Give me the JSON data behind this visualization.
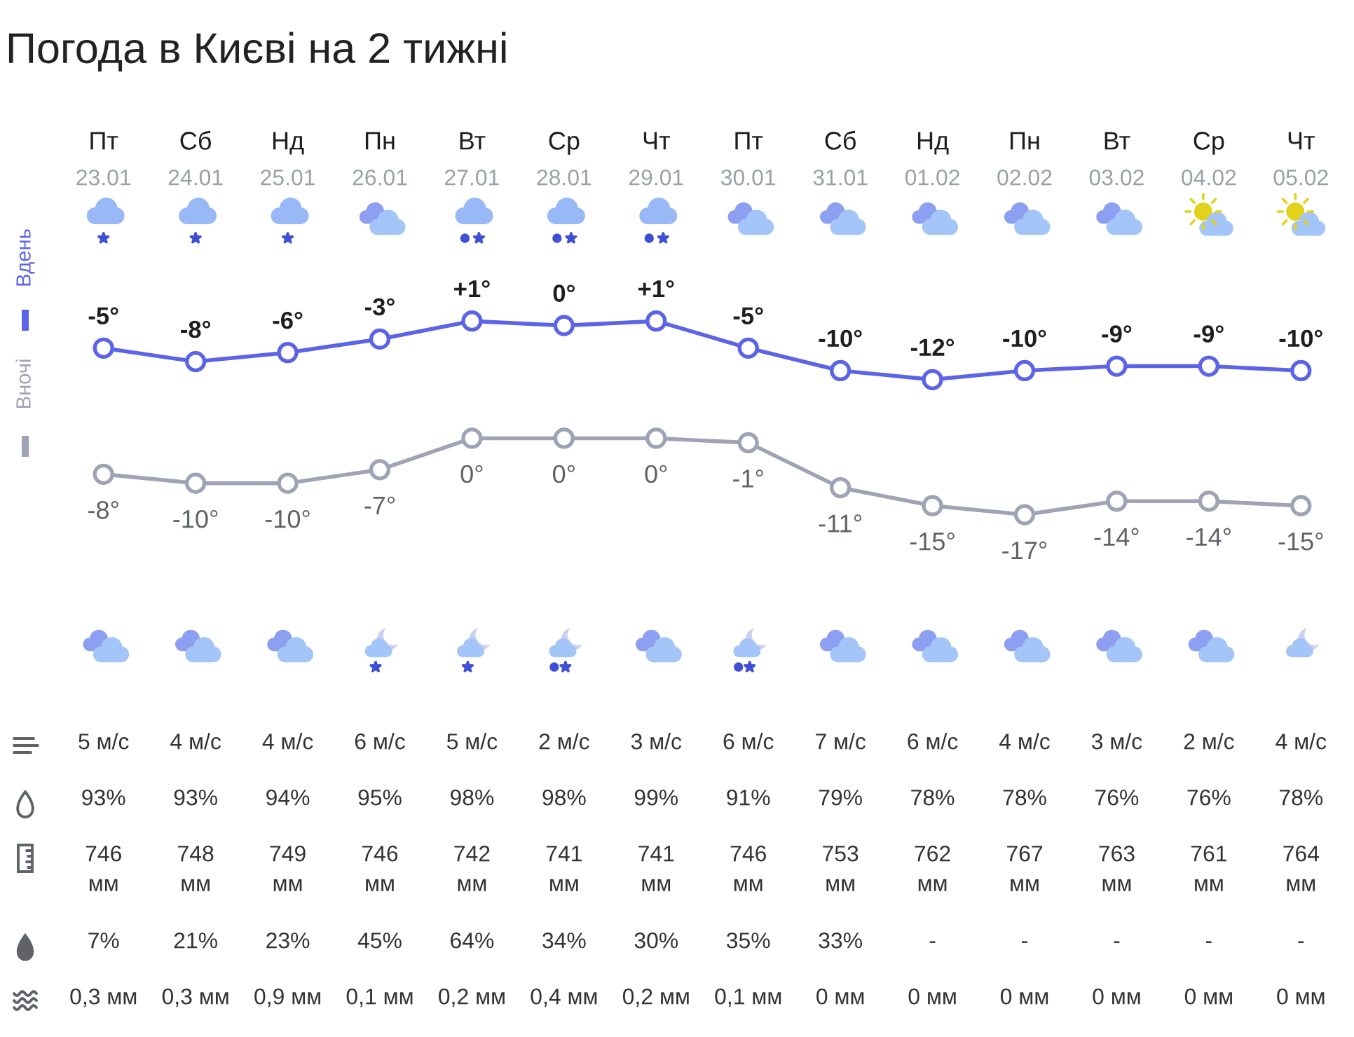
{
  "chart_data": [
    {
      "type": "line",
      "title": "Погода в Києві на 2 тижні",
      "categories": [
        "Пт\n23.01",
        "Сб\n24.01",
        "Нд\n25.01",
        "Пн\n26.01",
        "Вт\n27.01",
        "Ср\n28.01",
        "Чт\n29.01",
        "Пт\n30.01",
        "Сб\n31.01",
        "Нд\n01.02",
        "Пн\n02.02",
        "Вт\n03.02",
        "Ср\n04.02",
        "Чт\n05.02"
      ],
      "series": [
        {
          "name": "Вдень",
          "color": "#5b63e6",
          "values": [
            -5,
            -8,
            -6,
            -3,
            1,
            0,
            1,
            -5,
            -10,
            -12,
            -10,
            -9,
            -9,
            -10
          ],
          "value_labels": [
            "-5°",
            "-8°",
            "-6°",
            "-3°",
            "+1°",
            "0°",
            "+1°",
            "-5°",
            "-10°",
            "-12°",
            "-10°",
            "-9°",
            "-9°",
            "-10°"
          ]
        }
      ],
      "marker": "circle",
      "line_style": "solid",
      "legend": "left",
      "tick_labels": "x"
    },
    {
      "type": "line",
      "categories": [
        null,
        null,
        null,
        null,
        null,
        null,
        null,
        null,
        null,
        null,
        null,
        null,
        null,
        null
      ],
      "series": [
        {
          "name": "Вночі",
          "color": "#9ea3b5",
          "values": [
            -8,
            -10,
            -10,
            -7,
            0,
            0,
            0,
            -1,
            -11,
            -15,
            -17,
            -14,
            -14,
            -15
          ],
          "value_labels": [
            "-8°",
            "-10°",
            "-10°",
            "-7°",
            "0°",
            "0°",
            "0°",
            "-1°",
            "-11°",
            "-15°",
            "-17°",
            "-14°",
            "-14°",
            "-15°"
          ]
        }
      ],
      "marker": "circle",
      "line_style": "solid",
      "legend": "left",
      "tick_labels": false,
      "annotations": [
        "5 м/с",
        "4 м/с",
        "4 м/с",
        "6 м/с",
        "5 м/с",
        "2 м/с",
        "3 м/с",
        "6 м/с",
        "7 м/с",
        "6 м/с",
        "4 м/с",
        "3 м/с",
        "2 м/с",
        "4 м/с",
        "93%",
        "93%",
        "94%",
        "95%",
        "98%",
        "98%",
        "99%",
        "91%",
        "79%",
        "78%",
        "78%",
        "76%",
        "76%",
        "78%",
        "746\nмм",
        "748\nмм",
        "749\nмм",
        "746\nмм",
        "742\nмм",
        "741\nмм",
        "741\nмм",
        "746\nмм",
        "753\nмм",
        "762\nмм",
        "767\nмм",
        "763\nмм",
        "761\nмм",
        "764\nмм",
        "7%",
        "21%",
        "23%",
        "45%",
        "64%",
        "34%",
        "30%",
        "35%",
        "33%",
        "-",
        "-",
        "-",
        "-",
        "-",
        "0,3 мм",
        "0,3 мм",
        "0,9 мм",
        "0,1 мм",
        "0,2 мм",
        "0,4 мм",
        "0,2 мм",
        "0,1 мм",
        "0 мм",
        "0 мм",
        "0 мм",
        "0 мм",
        "0 мм",
        "0 мм"
      ]
    }
  ]
}
